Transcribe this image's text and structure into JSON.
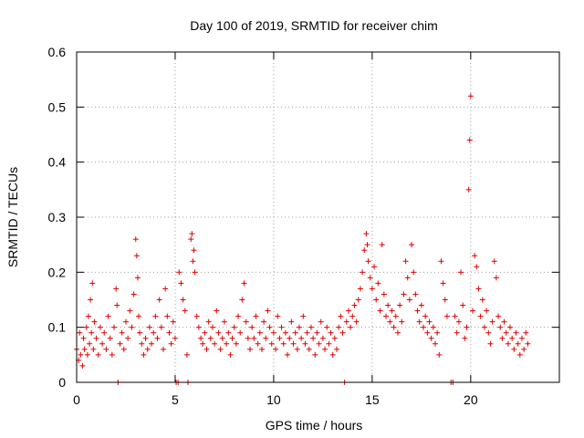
{
  "chart_data": {
    "type": "scatter",
    "title": "Day 100 of 2019, SRMTID for receiver chim",
    "xlabel": "GPS time / hours",
    "ylabel": "SRMTID / TECUs",
    "xlim": [
      0,
      24.5
    ],
    "ylim": [
      0,
      0.6
    ],
    "xticks": [
      0,
      5,
      10,
      15,
      20
    ],
    "xtick_labels": [
      "0",
      "5",
      "10",
      "15",
      "20"
    ],
    "yticks": [
      0,
      0.1,
      0.2,
      0.3,
      0.4,
      0.5,
      0.6
    ],
    "ytick_labels": [
      "0",
      "0.1",
      "0.2",
      "0.3",
      "0.4",
      "0.5",
      "0.6"
    ],
    "grid": true,
    "marker": "+",
    "series": [
      {
        "name": "SRMTID",
        "color": "#e00000",
        "points": [
          [
            0.0,
            0.06
          ],
          [
            0.1,
            0.04
          ],
          [
            0.15,
            0.09
          ],
          [
            0.2,
            0.05
          ],
          [
            0.3,
            0.03
          ],
          [
            0.35,
            0.08
          ],
          [
            0.4,
            0.06
          ],
          [
            0.5,
            0.1
          ],
          [
            0.55,
            0.05
          ],
          [
            0.6,
            0.12
          ],
          [
            0.65,
            0.07
          ],
          [
            0.7,
            0.15
          ],
          [
            0.75,
            0.09
          ],
          [
            0.8,
            0.18
          ],
          [
            0.85,
            0.06
          ],
          [
            0.9,
            0.11
          ],
          [
            1.0,
            0.08
          ],
          [
            1.1,
            0.05
          ],
          [
            1.2,
            0.1
          ],
          [
            1.3,
            0.07
          ],
          [
            1.4,
            0.09
          ],
          [
            1.5,
            0.06
          ],
          [
            1.6,
            0.12
          ],
          [
            1.7,
            0.08
          ],
          [
            1.8,
            0.05
          ],
          [
            1.9,
            0.1
          ],
          [
            2.0,
            0.17
          ],
          [
            2.05,
            0.14
          ],
          [
            2.1,
            0.0
          ],
          [
            2.2,
            0.07
          ],
          [
            2.3,
            0.09
          ],
          [
            2.4,
            0.06
          ],
          [
            2.5,
            0.11
          ],
          [
            2.6,
            0.08
          ],
          [
            2.7,
            0.13
          ],
          [
            2.8,
            0.1
          ],
          [
            2.9,
            0.16
          ],
          [
            3.0,
            0.26
          ],
          [
            3.05,
            0.23
          ],
          [
            3.1,
            0.19
          ],
          [
            3.15,
            0.12
          ],
          [
            3.2,
            0.09
          ],
          [
            3.3,
            0.07
          ],
          [
            3.4,
            0.05
          ],
          [
            3.5,
            0.08
          ],
          [
            3.6,
            0.06
          ],
          [
            3.7,
            0.1
          ],
          [
            3.8,
            0.07
          ],
          [
            3.9,
            0.09
          ],
          [
            4.0,
            0.12
          ],
          [
            4.1,
            0.08
          ],
          [
            4.2,
            0.15
          ],
          [
            4.3,
            0.1
          ],
          [
            4.4,
            0.06
          ],
          [
            4.5,
            0.17
          ],
          [
            4.6,
            0.12
          ],
          [
            4.7,
            0.09
          ],
          [
            4.8,
            0.07
          ],
          [
            4.9,
            0.11
          ],
          [
            5.0,
            0.08
          ],
          [
            5.05,
            0.0
          ],
          [
            5.15,
            0.0
          ],
          [
            5.2,
            0.2
          ],
          [
            5.3,
            0.18
          ],
          [
            5.4,
            0.15
          ],
          [
            5.5,
            0.13
          ],
          [
            5.6,
            0.05
          ],
          [
            5.65,
            0.0
          ],
          [
            5.8,
            0.26
          ],
          [
            5.85,
            0.27
          ],
          [
            5.9,
            0.22
          ],
          [
            5.95,
            0.24
          ],
          [
            6.0,
            0.2
          ],
          [
            6.1,
            0.12
          ],
          [
            6.2,
            0.1
          ],
          [
            6.3,
            0.08
          ],
          [
            6.4,
            0.07
          ],
          [
            6.5,
            0.09
          ],
          [
            6.6,
            0.06
          ],
          [
            6.7,
            0.11
          ],
          [
            6.8,
            0.08
          ],
          [
            6.9,
            0.1
          ],
          [
            7.0,
            0.07
          ],
          [
            7.1,
            0.13
          ],
          [
            7.2,
            0.09
          ],
          [
            7.3,
            0.06
          ],
          [
            7.4,
            0.08
          ],
          [
            7.5,
            0.11
          ],
          [
            7.6,
            0.07
          ],
          [
            7.7,
            0.09
          ],
          [
            7.8,
            0.05
          ],
          [
            7.9,
            0.08
          ],
          [
            8.0,
            0.1
          ],
          [
            8.1,
            0.07
          ],
          [
            8.2,
            0.12
          ],
          [
            8.3,
            0.09
          ],
          [
            8.4,
            0.15
          ],
          [
            8.5,
            0.18
          ],
          [
            8.6,
            0.11
          ],
          [
            8.7,
            0.08
          ],
          [
            8.8,
            0.06
          ],
          [
            8.9,
            0.1
          ],
          [
            9.0,
            0.08
          ],
          [
            9.1,
            0.12
          ],
          [
            9.2,
            0.07
          ],
          [
            9.3,
            0.09
          ],
          [
            9.4,
            0.06
          ],
          [
            9.5,
            0.11
          ],
          [
            9.6,
            0.08
          ],
          [
            9.7,
            0.13
          ],
          [
            9.8,
            0.1
          ],
          [
            9.9,
            0.07
          ],
          [
            10.0,
            0.09
          ],
          [
            10.1,
            0.06
          ],
          [
            10.2,
            0.12
          ],
          [
            10.3,
            0.08
          ],
          [
            10.4,
            0.1
          ],
          [
            10.5,
            0.07
          ],
          [
            10.6,
            0.09
          ],
          [
            10.7,
            0.05
          ],
          [
            10.8,
            0.08
          ],
          [
            10.9,
            0.11
          ],
          [
            11.0,
            0.07
          ],
          [
            11.1,
            0.09
          ],
          [
            11.2,
            0.06
          ],
          [
            11.3,
            0.1
          ],
          [
            11.4,
            0.08
          ],
          [
            11.5,
            0.12
          ],
          [
            11.6,
            0.07
          ],
          [
            11.7,
            0.09
          ],
          [
            11.8,
            0.06
          ],
          [
            11.9,
            0.1
          ],
          [
            12.0,
            0.08
          ],
          [
            12.1,
            0.05
          ],
          [
            12.2,
            0.09
          ],
          [
            12.3,
            0.07
          ],
          [
            12.4,
            0.11
          ],
          [
            12.5,
            0.08
          ],
          [
            12.6,
            0.06
          ],
          [
            12.7,
            0.1
          ],
          [
            12.8,
            0.07
          ],
          [
            12.9,
            0.09
          ],
          [
            13.0,
            0.05
          ],
          [
            13.1,
            0.08
          ],
          [
            13.2,
            0.06
          ],
          [
            13.3,
            0.1
          ],
          [
            13.4,
            0.12
          ],
          [
            13.5,
            0.09
          ],
          [
            13.6,
            0.0
          ],
          [
            13.7,
            0.11
          ],
          [
            13.8,
            0.13
          ],
          [
            13.9,
            0.1
          ],
          [
            14.0,
            0.12
          ],
          [
            14.1,
            0.14
          ],
          [
            14.2,
            0.11
          ],
          [
            14.3,
            0.15
          ],
          [
            14.4,
            0.17
          ],
          [
            14.5,
            0.2
          ],
          [
            14.6,
            0.24
          ],
          [
            14.7,
            0.27
          ],
          [
            14.75,
            0.25
          ],
          [
            14.8,
            0.22
          ],
          [
            14.9,
            0.19
          ],
          [
            15.0,
            0.17
          ],
          [
            15.1,
            0.21
          ],
          [
            15.2,
            0.15
          ],
          [
            15.3,
            0.18
          ],
          [
            15.4,
            0.13
          ],
          [
            15.5,
            0.25
          ],
          [
            15.6,
            0.16
          ],
          [
            15.7,
            0.12
          ],
          [
            15.8,
            0.14
          ],
          [
            15.9,
            0.11
          ],
          [
            16.0,
            0.13
          ],
          [
            16.1,
            0.1
          ],
          [
            16.2,
            0.12
          ],
          [
            16.3,
            0.09
          ],
          [
            16.4,
            0.14
          ],
          [
            16.5,
            0.11
          ],
          [
            16.6,
            0.16
          ],
          [
            16.7,
            0.22
          ],
          [
            16.8,
            0.19
          ],
          [
            16.9,
            0.15
          ],
          [
            17.0,
            0.25
          ],
          [
            17.1,
            0.2
          ],
          [
            17.2,
            0.16
          ],
          [
            17.3,
            0.13
          ],
          [
            17.4,
            0.11
          ],
          [
            17.5,
            0.14
          ],
          [
            17.6,
            0.1
          ],
          [
            17.7,
            0.12
          ],
          [
            17.8,
            0.09
          ],
          [
            17.9,
            0.11
          ],
          [
            18.0,
            0.08
          ],
          [
            18.1,
            0.1
          ],
          [
            18.2,
            0.07
          ],
          [
            18.3,
            0.09
          ],
          [
            18.4,
            0.05
          ],
          [
            18.5,
            0.22
          ],
          [
            18.6,
            0.18
          ],
          [
            18.7,
            0.15
          ],
          [
            18.8,
            0.12
          ],
          [
            19.0,
            0.0
          ],
          [
            19.1,
            0.0
          ],
          [
            19.2,
            0.12
          ],
          [
            19.3,
            0.09
          ],
          [
            19.4,
            0.11
          ],
          [
            19.5,
            0.2
          ],
          [
            19.6,
            0.14
          ],
          [
            19.7,
            0.08
          ],
          [
            19.8,
            0.1
          ],
          [
            19.9,
            0.35
          ],
          [
            19.95,
            0.44
          ],
          [
            20.0,
            0.52
          ],
          [
            20.1,
            0.13
          ],
          [
            20.2,
            0.23
          ],
          [
            20.3,
            0.21
          ],
          [
            20.4,
            0.17
          ],
          [
            20.5,
            0.12
          ],
          [
            20.6,
            0.15
          ],
          [
            20.7,
            0.1
          ],
          [
            20.8,
            0.13
          ],
          [
            20.9,
            0.09
          ],
          [
            21.0,
            0.07
          ],
          [
            21.1,
            0.11
          ],
          [
            21.2,
            0.22
          ],
          [
            21.3,
            0.19
          ],
          [
            21.4,
            0.12
          ],
          [
            21.5,
            0.1
          ],
          [
            21.6,
            0.08
          ],
          [
            21.7,
            0.11
          ],
          [
            21.8,
            0.09
          ],
          [
            21.9,
            0.07
          ],
          [
            22.0,
            0.1
          ],
          [
            22.1,
            0.08
          ],
          [
            22.2,
            0.06
          ],
          [
            22.3,
            0.09
          ],
          [
            22.4,
            0.07
          ],
          [
            22.5,
            0.05
          ],
          [
            22.6,
            0.08
          ],
          [
            22.7,
            0.06
          ],
          [
            22.8,
            0.09
          ],
          [
            22.9,
            0.07
          ]
        ]
      }
    ]
  }
}
